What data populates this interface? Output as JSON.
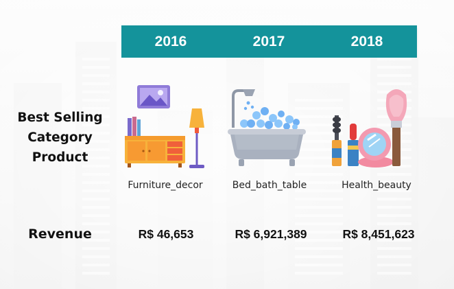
{
  "years": [
    "2016",
    "2017",
    "2018"
  ],
  "row_labels": {
    "best_selling": [
      "Best Selling",
      "Category",
      "Product"
    ],
    "revenue": "Revenue"
  },
  "categories": [
    "Furniture_decor",
    "Bed_bath_table",
    "Health_beauty"
  ],
  "revenues": [
    "R$ 46,653",
    "R$ 6,921,389",
    "R$ 8,451,623"
  ],
  "icons": [
    "furniture-decor-icon",
    "bathtub-icon",
    "cosmetics-icon"
  ],
  "colors": {
    "header": "#14939b",
    "header_text": "#ffffff"
  }
}
